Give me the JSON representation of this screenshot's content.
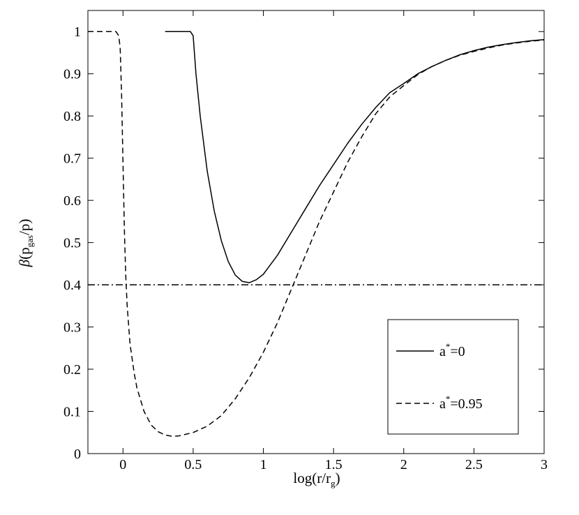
{
  "chart_data": {
    "type": "line",
    "title": "",
    "xlabel": {
      "base": "log(r/r",
      "sub": "g",
      "close": ")"
    },
    "ylabel": {
      "beta": "β",
      "open": "(p",
      "sub": "gas",
      "rest": "/p)"
    },
    "xlim": [
      -0.25,
      3
    ],
    "ylim": [
      0,
      1.05
    ],
    "xticks": [
      0,
      0.5,
      1,
      1.5,
      2,
      2.5,
      3
    ],
    "xtick_labels": [
      "0",
      "0.5",
      "1",
      "1.5",
      "2",
      "2.5",
      "3"
    ],
    "yticks": [
      0,
      0.1,
      0.2,
      0.3,
      0.4,
      0.5,
      0.6,
      0.7,
      0.8,
      0.9,
      1
    ],
    "ytick_labels": [
      "0",
      "0.1",
      "0.2",
      "0.3",
      "0.4",
      "0.5",
      "0.6",
      "0.7",
      "0.8",
      "0.9",
      "1"
    ],
    "grid": false,
    "legend_position": "lower-right",
    "series": [
      {
        "name": {
          "prefix": "a",
          "sup": "*",
          "suffix": "=0"
        },
        "style": "solid",
        "color": "#000000",
        "x": [
          0.3,
          0.45,
          0.48,
          0.5,
          0.52,
          0.55,
          0.6,
          0.65,
          0.7,
          0.75,
          0.8,
          0.85,
          0.9,
          0.95,
          1.0,
          1.1,
          1.2,
          1.3,
          1.4,
          1.5,
          1.6,
          1.7,
          1.8,
          1.9,
          2.0,
          2.1,
          2.2,
          2.3,
          2.4,
          2.5,
          2.6,
          2.7,
          2.8,
          2.9,
          3.0
        ],
        "y": [
          1.0,
          1.0,
          1.0,
          0.99,
          0.9,
          0.8,
          0.67,
          0.575,
          0.505,
          0.455,
          0.423,
          0.408,
          0.405,
          0.412,
          0.425,
          0.47,
          0.525,
          0.58,
          0.635,
          0.685,
          0.735,
          0.78,
          0.82,
          0.855,
          0.877,
          0.9,
          0.917,
          0.932,
          0.945,
          0.955,
          0.963,
          0.969,
          0.974,
          0.978,
          0.981
        ]
      },
      {
        "name": {
          "prefix": "a",
          "sup": "*",
          "suffix": "=0.95"
        },
        "style": "dashed",
        "color": "#000000",
        "x": [
          -0.25,
          -0.08,
          -0.05,
          -0.03,
          -0.02,
          -0.01,
          0.0,
          0.01,
          0.02,
          0.03,
          0.05,
          0.08,
          0.1,
          0.15,
          0.2,
          0.25,
          0.3,
          0.35,
          0.4,
          0.5,
          0.6,
          0.7,
          0.8,
          0.9,
          1.0,
          1.1,
          1.2,
          1.3,
          1.4,
          1.5,
          1.6,
          1.7,
          1.8,
          1.9,
          2.0,
          2.1,
          2.2,
          2.3,
          2.4,
          2.5,
          2.6,
          2.7,
          2.8,
          2.9,
          3.0
        ],
        "y": [
          1.0,
          1.0,
          1.0,
          0.99,
          0.96,
          0.85,
          0.69,
          0.53,
          0.42,
          0.35,
          0.26,
          0.19,
          0.155,
          0.1,
          0.068,
          0.052,
          0.044,
          0.041,
          0.042,
          0.05,
          0.065,
          0.09,
          0.13,
          0.18,
          0.24,
          0.31,
          0.39,
          0.47,
          0.55,
          0.62,
          0.69,
          0.75,
          0.805,
          0.845,
          0.872,
          0.898,
          0.917,
          0.932,
          0.944,
          0.953,
          0.961,
          0.968,
          0.973,
          0.977,
          0.98
        ]
      },
      {
        "name": null,
        "style": "dashdot",
        "color": "#000000",
        "x": [
          -0.25,
          3.0
        ],
        "y": [
          0.4,
          0.4
        ]
      }
    ]
  }
}
